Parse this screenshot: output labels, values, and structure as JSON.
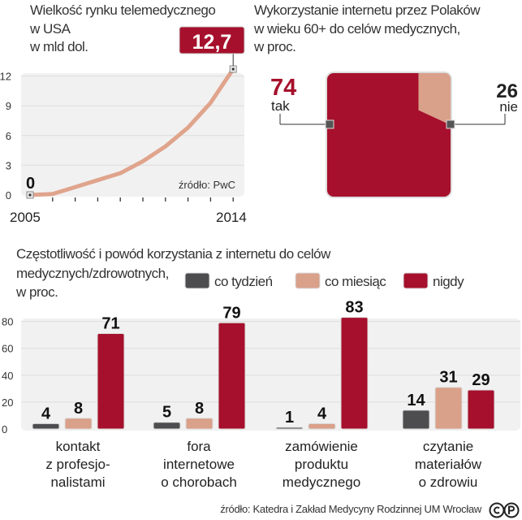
{
  "colors": {
    "weekly": "#4d4d4f",
    "monthly": "#d9a08a",
    "never": "#a6102c",
    "line": "#e0a48c",
    "grid_bg": "#f1f1f1"
  },
  "chart_data": [
    {
      "type": "line",
      "title": "Wielkość rynku telemedycznego\nw USA\nw mld dol.",
      "title_lines": [
        "Wielkość rynku telemedycznego",
        "w USA",
        "w mld dol."
      ],
      "x": [
        2005,
        2006,
        2007,
        2008,
        2009,
        2010,
        2011,
        2012,
        2013,
        2014
      ],
      "y": [
        0,
        0.1,
        0.8,
        1.5,
        2.2,
        3.4,
        4.9,
        6.8,
        9.3,
        12.7
      ],
      "xtick_labels": [
        "2005",
        "2014"
      ],
      "yticks": [
        "0",
        "3",
        "6",
        "9",
        "12"
      ],
      "ylim": [
        0,
        12.7
      ],
      "start_label": "0",
      "end_label": "12,7",
      "source": "źródło: PwC",
      "grid": true
    },
    {
      "type": "pie",
      "title_lines": [
        "Wykorzystanie internetu przez Polaków",
        "w wieku 60+ do celów medycznych,",
        "w proc."
      ],
      "slices": [
        {
          "label": "tak",
          "value": 74,
          "value_label": "74"
        },
        {
          "label": "nie",
          "value": 26,
          "value_label": "26"
        }
      ]
    },
    {
      "type": "bar",
      "title_lines": [
        "Częstotliwość i powód korzystania z internetu do celów",
        "medycznych/zdrowotnych,",
        "w proc."
      ],
      "categories": [
        [
          "kontakt",
          "z profesjo-",
          "nalistami"
        ],
        [
          "fora",
          "internetowe",
          "o chorobach"
        ],
        [
          "zamówienie",
          "produktu",
          "medycznego"
        ],
        [
          "czytanie",
          "materiałów",
          "o zdrowiu"
        ]
      ],
      "series": [
        {
          "name": "co tydzień",
          "values": [
            4,
            5,
            1,
            14
          ]
        },
        {
          "name": "co miesiąc",
          "values": [
            8,
            8,
            4,
            31
          ]
        },
        {
          "name": "nigdy",
          "values": [
            71,
            79,
            83,
            29
          ]
        }
      ],
      "yticks": [
        "0",
        "20",
        "40",
        "60",
        "80"
      ],
      "ylim": [
        0,
        85
      ],
      "legend": "top-right",
      "grid": true
    }
  ],
  "footer": {
    "source": "źródło: Katedra i Zakład Medycyny Rodzinnej UM Wrocław",
    "license": "CC-BY-NC"
  }
}
